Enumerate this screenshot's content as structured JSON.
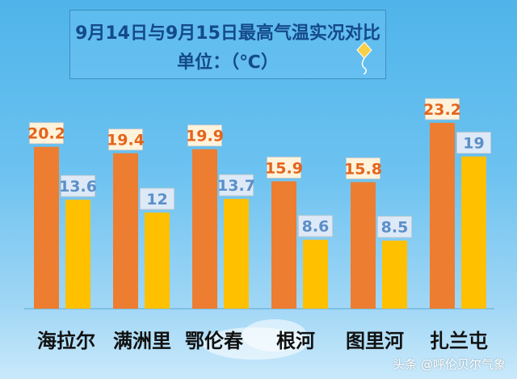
{
  "title": {
    "line1": "9月14日与9月15日最高气温实况对比",
    "line2": "单位：（℃）"
  },
  "watermark": "头条 @呼伦贝尔气象",
  "colors": {
    "series1": "#ed7d31",
    "series2": "#ffc000",
    "label1_text": "#e4641c",
    "label2_text": "#5b8fc9",
    "label1_bg": "#fff3dc",
    "label2_bg": "#dde9f7",
    "title_text": "#144a8a"
  },
  "chart_data": {
    "type": "bar",
    "categories": [
      "海拉尔",
      "满洲里",
      "鄂伦春",
      "根河",
      "图里河",
      "扎兰屯"
    ],
    "series": [
      {
        "values": [
          20.2,
          19.4,
          19.9,
          15.9,
          15.8,
          23.2
        ]
      },
      {
        "values": [
          13.6,
          12,
          13.7,
          8.6,
          8.5,
          19
        ]
      }
    ],
    "ylim": [
      0,
      26
    ],
    "grid": false,
    "legend": "none"
  }
}
